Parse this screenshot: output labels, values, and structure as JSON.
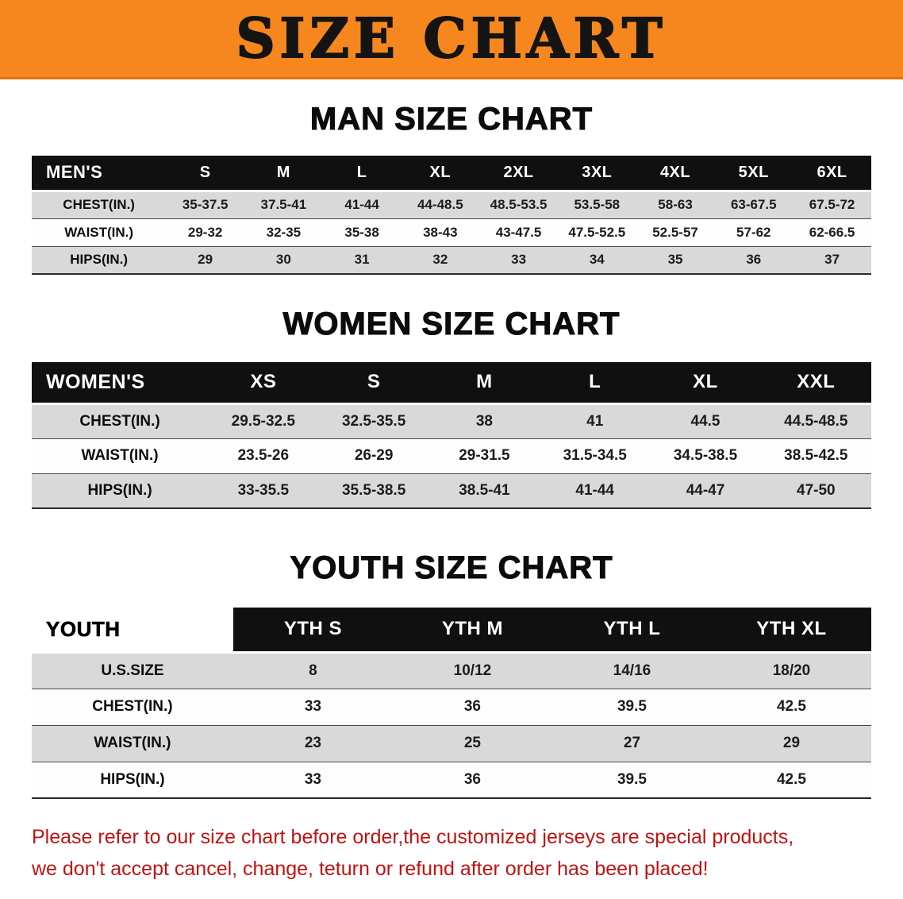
{
  "banner": {
    "title": "SIZE CHART"
  },
  "colors": {
    "banner_bg": "#F6871F",
    "header_bg": "#101010",
    "row_gray": "#D9D9D9",
    "notice_red": "#C11212"
  },
  "sections": [
    {
      "heading": "MAN SIZE CHART",
      "table": {
        "header": [
          "MEN'S",
          "S",
          "M",
          "L",
          "XL",
          "2XL",
          "3XL",
          "4XL",
          "5XL",
          "6XL"
        ],
        "rows": [
          {
            "label": "CHEST(IN.)",
            "values": [
              "35-37.5",
              "37.5-41",
              "41-44",
              "44-48.5",
              "48.5-53.5",
              "53.5-58",
              "58-63",
              "63-67.5",
              "67.5-72"
            ]
          },
          {
            "label": "WAIST(IN.)",
            "values": [
              "29-32",
              "32-35",
              "35-38",
              "38-43",
              "43-47.5",
              "47.5-52.5",
              "52.5-57",
              "57-62",
              "62-66.5"
            ]
          },
          {
            "label": "HIPS(IN.)",
            "values": [
              "29",
              "30",
              "31",
              "32",
              "33",
              "34",
              "35",
              "36",
              "37"
            ]
          }
        ]
      }
    },
    {
      "heading": "WOMEN SIZE CHART",
      "table": {
        "header": [
          "WOMEN'S",
          "XS",
          "S",
          "M",
          "L",
          "XL",
          "XXL"
        ],
        "rows": [
          {
            "label": "CHEST(IN.)",
            "values": [
              "29.5-32.5",
              "32.5-35.5",
              "38",
              "41",
              "44.5",
              "44.5-48.5"
            ]
          },
          {
            "label": "WAIST(IN.)",
            "values": [
              "23.5-26",
              "26-29",
              "29-31.5",
              "31.5-34.5",
              "34.5-38.5",
              "38.5-42.5"
            ]
          },
          {
            "label": "HIPS(IN.)",
            "values": [
              "33-35.5",
              "35.5-38.5",
              "38.5-41",
              "41-44",
              "44-47",
              "47-50"
            ]
          }
        ]
      }
    },
    {
      "heading": "YOUTH SIZE CHART",
      "table": {
        "header": [
          "YOUTH",
          "YTH S",
          "YTH M",
          "YTH L",
          "YTH XL"
        ],
        "rows": [
          {
            "label": "U.S.SIZE",
            "values": [
              "8",
              "10/12",
              "14/16",
              "18/20"
            ]
          },
          {
            "label": "CHEST(IN.)",
            "values": [
              "33",
              "36",
              "39.5",
              "42.5"
            ]
          },
          {
            "label": "WAIST(IN.)",
            "values": [
              "23",
              "25",
              "27",
              "29"
            ]
          },
          {
            "label": "HIPS(IN.)",
            "values": [
              "33",
              "36",
              "39.5",
              "42.5"
            ]
          }
        ]
      }
    }
  ],
  "footer": {
    "line1": "Please refer to our size chart before order,the customized jerseys are special products,",
    "line2": "we don't accept cancel, change, teturn or refund after order has been placed!"
  }
}
